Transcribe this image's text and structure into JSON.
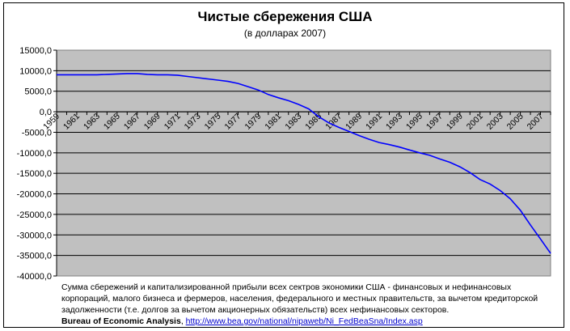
{
  "chart_data": {
    "type": "line",
    "title": "Чистые сбережения США",
    "subtitle": "(в долларах 2007)",
    "xlabel": "",
    "ylabel": "",
    "ylim": [
      -40000,
      15000
    ],
    "y_ticks": [
      "15000,0",
      "10000,0",
      "5000,0",
      "0,0",
      "-5000,0",
      "-10000,0",
      "-15000,0",
      "-20000,0",
      "-25000,0",
      "-30000,0",
      "-35000,0",
      "-40000,0"
    ],
    "x_tick_labels": [
      "1959",
      "1961",
      "1963",
      "1965",
      "1967",
      "1969",
      "1971",
      "1973",
      "1975",
      "1977",
      "1979",
      "1981",
      "1983",
      "1985",
      "1987",
      "1989",
      "1991",
      "1993",
      "1995",
      "1997",
      "1999",
      "2001",
      "2003",
      "2005",
      "2007"
    ],
    "grid": true,
    "plot_background": "#c0c0c0",
    "line_color": "#0000ff",
    "series": [
      {
        "x": [
          1959,
          1960,
          1961,
          1962,
          1963,
          1964,
          1965,
          1966,
          1967,
          1968,
          1969,
          1970,
          1971,
          1972,
          1973,
          1974,
          1975,
          1976,
          1977,
          1978,
          1979,
          1980,
          1981,
          1982,
          1983,
          1984,
          1985,
          1986,
          1987,
          1988,
          1989,
          1990,
          1991,
          1992,
          1993,
          1994,
          1995,
          1996,
          1997,
          1998,
          1999,
          2000,
          2001,
          2002,
          2003,
          2004,
          2005,
          2006,
          2007,
          2008
        ],
        "values": [
          9000,
          9000,
          9000,
          9000,
          9000,
          9100,
          9200,
          9300,
          9300,
          9100,
          9000,
          9000,
          8900,
          8600,
          8300,
          8000,
          7700,
          7400,
          6900,
          6100,
          5300,
          4200,
          3400,
          2700,
          1800,
          700,
          -1200,
          -2700,
          -3800,
          -4800,
          -5800,
          -6700,
          -7500,
          -8000,
          -8600,
          -9300,
          -10000,
          -10600,
          -11500,
          -12300,
          -13400,
          -14800,
          -16500,
          -17600,
          -19200,
          -21200,
          -24000,
          -27600,
          -31000,
          -34500
        ]
      }
    ]
  },
  "note": {
    "text": "Сумма сбережений и капитализированной прибыли всех сектров экономики США - финансовых и нефинансовых корпораций, малого бизнеса и фермеров, населения, федерального и местных правительств, за вычетом кредиторской задолженности (т.е. долгов за вычетом акционерных обязательств) всех нефинансовых секторов.",
    "source_label": "Bureau of Economic Analysis",
    "source_separator": ", ",
    "source_link": "http://www.bea.gov/national/nipaweb/Ni_FedBeaSna/Index.asp"
  }
}
